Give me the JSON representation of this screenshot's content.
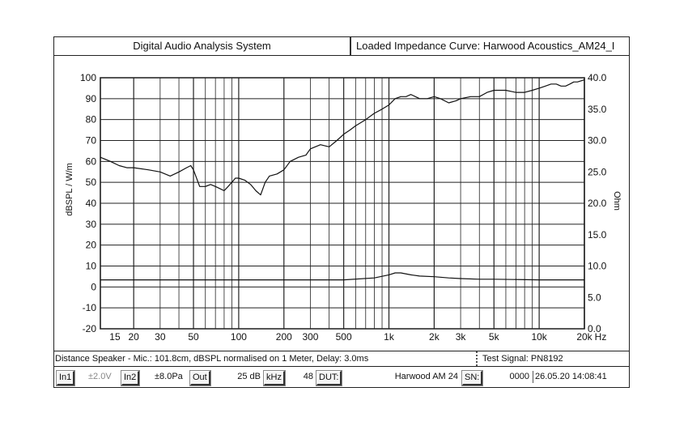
{
  "header": {
    "left_title": "Digital Audio Analysis System",
    "right_title": "Loaded Impedance Curve: Harwood Acoustics_AM24_I"
  },
  "chart_data": {
    "type": "line",
    "x_scale": "log",
    "xlim": [
      12,
      20000
    ],
    "x_ticks": [
      15,
      20,
      30,
      50,
      100,
      200,
      300,
      500,
      1000,
      2000,
      3000,
      5000,
      10000,
      20000
    ],
    "x_tick_labels": [
      "15",
      "20",
      "30",
      "50",
      "100",
      "200",
      "300",
      "500",
      "1k",
      "2k",
      "3k",
      "5k",
      "10k",
      "20k"
    ],
    "x_unit": "Hz",
    "ylabel": "dBSPL / W/m",
    "ylim": [
      -20,
      100
    ],
    "y_ticks": [
      -20,
      -10,
      0,
      10,
      20,
      30,
      40,
      50,
      60,
      70,
      80,
      90,
      100
    ],
    "y_tick_labels": [
      "-20",
      "-10",
      "0",
      "10",
      "20",
      "30",
      "40",
      "50",
      "60",
      "70",
      "80",
      "90",
      "100"
    ],
    "y2label": "Ohm",
    "y2lim": [
      0,
      40
    ],
    "y2_ticks": [
      0,
      5,
      10,
      15,
      20,
      25,
      30,
      35,
      40
    ],
    "y2_tick_labels": [
      "0.0",
      "5.0",
      "10.0",
      "15.0",
      "20.0",
      "25.0",
      "30.0",
      "35.0",
      "40.0"
    ],
    "grid": true,
    "series": [
      {
        "axis": "left",
        "x": [
          12,
          14,
          16,
          18,
          20,
          25,
          30,
          35,
          40,
          45,
          48,
          50,
          55,
          60,
          65,
          70,
          75,
          80,
          85,
          90,
          95,
          100,
          110,
          120,
          130,
          140,
          150,
          160,
          180,
          200,
          220,
          250,
          280,
          300,
          350,
          400,
          450,
          500,
          550,
          600,
          700,
          800,
          900,
          1000,
          1100,
          1200,
          1300,
          1400,
          1500,
          1600,
          1800,
          2000,
          2200,
          2500,
          2800,
          3000,
          3500,
          4000,
          4500,
          5000,
          5500,
          6000,
          7000,
          8000,
          9000,
          10000,
          11000,
          12000,
          13000,
          14000,
          15000,
          16000,
          17000,
          18000,
          20000
        ],
        "y": [
          62,
          60,
          58,
          57,
          57,
          56,
          55,
          53,
          55,
          57,
          58,
          56,
          48,
          48,
          49,
          48,
          47,
          46,
          48,
          50,
          52,
          52,
          51,
          49,
          46,
          44,
          50,
          53,
          54,
          56,
          60,
          62,
          63,
          66,
          68,
          67,
          70,
          73,
          75,
          77,
          80,
          83,
          85,
          87,
          90,
          91,
          91,
          92,
          91,
          90,
          90,
          91,
          90,
          88,
          89,
          90,
          91,
          91,
          93,
          94,
          94,
          94,
          93,
          93,
          94,
          95,
          96,
          97,
          97,
          96,
          96,
          97,
          98,
          98,
          99
        ]
      },
      {
        "axis": "right",
        "x": [
          12,
          20,
          50,
          100,
          200,
          500,
          800,
          1000,
          1100,
          1200,
          1400,
          1600,
          2000,
          2500,
          3000,
          4000,
          5000,
          10000,
          20000
        ],
        "y": [
          7.8,
          7.8,
          7.8,
          7.8,
          7.8,
          7.8,
          8.1,
          8.6,
          8.9,
          8.9,
          8.6,
          8.4,
          8.3,
          8.1,
          8.0,
          7.9,
          7.9,
          7.8,
          7.8
        ]
      }
    ]
  },
  "info": {
    "left": "Distance Speaker - Mic.: 101.8cm, dBSPL normalised on 1 Meter, Delay: 3.0ms",
    "right": "Test Signal: PN8192"
  },
  "status": {
    "in1": "In1",
    "in1_value": "±2.0V",
    "in2": "In2",
    "in2_value": "±8.0Pa",
    "out": "Out",
    "out_value": "25 dB",
    "khz": "kHz",
    "khz_value": "48",
    "dut": "DUT:",
    "dut_value": "Harwood AM 24",
    "sn": "SN:",
    "sn_value": "0000",
    "datetime": "26.05.20  14:08:41"
  }
}
